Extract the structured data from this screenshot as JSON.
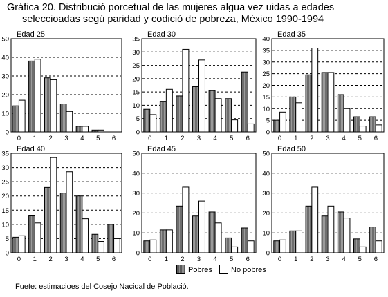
{
  "title": {
    "line1": "Gráfica 20. Distribució porcetual de las mujeres algua vez uidas a edades",
    "line2": "seleccioadas segú paridad y codició de pobreza, México 1990-1994"
  },
  "legend": {
    "pobres": "Pobres",
    "no_pobres": "No pobres"
  },
  "source": "Fuete: estimacioes del Cosejo Nacioal de Població.",
  "colors": {
    "pobres": "#8c8c8c",
    "no_pobres": "#ffffff",
    "grid": "#000000"
  },
  "chart_data": [
    {
      "type": "bar",
      "title": "Edad 25",
      "categories": [
        "0",
        "1",
        "2",
        "3",
        "4",
        "5",
        "6"
      ],
      "series": [
        {
          "name": "Pobres",
          "values": [
            14,
            38,
            29,
            15,
            3,
            1,
            0
          ]
        },
        {
          "name": "No pobres",
          "values": [
            17,
            39,
            28,
            11,
            3,
            1,
            0
          ]
        }
      ],
      "ylim": [
        0,
        50
      ],
      "yticks": [
        0,
        10,
        20,
        30,
        40,
        50
      ],
      "grid": true
    },
    {
      "type": "bar",
      "title": "Edad 30",
      "categories": [
        "0",
        "1",
        "2",
        "3",
        "4",
        "5",
        "6"
      ],
      "series": [
        {
          "name": "Pobres",
          "values": [
            8.5,
            11.5,
            13.5,
            17,
            15.5,
            12.5,
            22.5
          ]
        },
        {
          "name": "No pobres",
          "values": [
            6.5,
            16,
            31,
            27,
            12.5,
            4.5,
            3
          ]
        }
      ],
      "ylim": [
        0,
        35
      ],
      "yticks": [
        0,
        5,
        10,
        15,
        20,
        25,
        30,
        35
      ],
      "grid": true
    },
    {
      "type": "bar",
      "title": "Edad 35",
      "categories": [
        "0",
        "1",
        "2",
        "3",
        "4",
        "5",
        "6"
      ],
      "series": [
        {
          "name": "Pobres",
          "values": [
            5,
            15,
            24.5,
            25.5,
            16,
            6.5,
            6.5
          ]
        },
        {
          "name": "No pobres",
          "values": [
            8.5,
            12.5,
            36,
            25.5,
            10,
            2.5,
            3
          ]
        }
      ],
      "ylim": [
        0,
        40
      ],
      "yticks": [
        0,
        5,
        10,
        15,
        20,
        25,
        30,
        35,
        40
      ],
      "grid": true
    },
    {
      "type": "bar",
      "title": "Edad 40",
      "categories": [
        "0",
        "1",
        "2",
        "3",
        "4",
        "5",
        "6"
      ],
      "series": [
        {
          "name": "Pobres",
          "values": [
            5.5,
            13,
            23,
            21,
            20,
            6.5,
            10
          ]
        },
        {
          "name": "No pobres",
          "values": [
            6,
            10.5,
            33.5,
            28.5,
            12,
            4,
            5
          ]
        }
      ],
      "ylim": [
        0,
        35
      ],
      "yticks": [
        0,
        5,
        10,
        15,
        20,
        25,
        30,
        35
      ],
      "grid": true
    },
    {
      "type": "bar",
      "title": "Edad 45",
      "categories": [
        "0",
        "1",
        "2",
        "3",
        "4",
        "5",
        "6"
      ],
      "series": [
        {
          "name": "Pobres",
          "values": [
            6,
            11.5,
            23.5,
            18.5,
            20.5,
            7.5,
            12.5
          ]
        },
        {
          "name": "No pobres",
          "values": [
            6.5,
            11.5,
            33,
            26,
            15,
            3,
            6
          ]
        }
      ],
      "ylim": [
        0,
        50
      ],
      "yticks": [
        0,
        10,
        20,
        30,
        40,
        50
      ],
      "grid": true
    },
    {
      "type": "bar",
      "title": "Edad 50",
      "categories": [
        "0",
        "1",
        "2",
        "3",
        "4",
        "5",
        "6"
      ],
      "series": [
        {
          "name": "Pobres",
          "values": [
            6,
            11,
            23.5,
            18.5,
            20.5,
            7,
            13
          ]
        },
        {
          "name": "No pobres",
          "values": [
            6.5,
            11,
            33,
            23.5,
            17.5,
            3,
            6
          ]
        }
      ],
      "ylim": [
        0,
        50
      ],
      "yticks": [
        0,
        10,
        20,
        30,
        40,
        50
      ],
      "grid": true
    }
  ]
}
